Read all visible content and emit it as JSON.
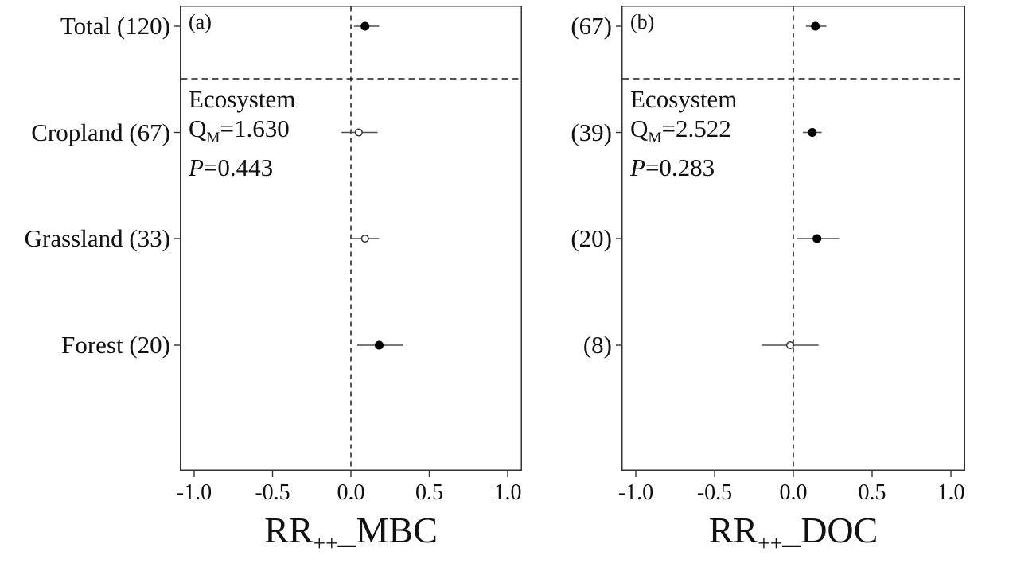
{
  "figure": {
    "background": "#ffffff",
    "axis_color": "#333333",
    "dashed_line_color": "#1a1a1a",
    "errorbar_color": "#4d4d4d",
    "marker_fill_color": "#000000",
    "marker_open_fill": "#ffffff"
  },
  "chart_data": [
    {
      "type": "scatter",
      "subtype": "forest-plot",
      "panel_label": "(a)",
      "xlabel_full": "RR++_MBC",
      "xlabel_base": "RR",
      "xlabel_sub": "++",
      "xlabel_rest": "_MBC",
      "xlim": [
        -1.0,
        1.0
      ],
      "xticks": [
        -1.0,
        -0.5,
        0.0,
        0.5,
        1.0
      ],
      "xtick_labels": [
        "-1.0",
        "-0.5",
        "0.0",
        "0.5",
        "1.0"
      ],
      "reference_line_x": 0.0,
      "grid": false,
      "rows": [
        {
          "label": "Total (120)",
          "n": 120,
          "mean": 0.09,
          "ci_low": 0.02,
          "ci_high": 0.18,
          "marker": "filled"
        },
        {
          "label": "Cropland (67)",
          "n": 67,
          "mean": 0.05,
          "ci_low": -0.06,
          "ci_high": 0.17,
          "marker": "open"
        },
        {
          "label": "Grassland (33)",
          "n": 33,
          "mean": 0.09,
          "ci_low": 0.0,
          "ci_high": 0.18,
          "marker": "open"
        },
        {
          "label": "Forest (20)",
          "n": 20,
          "mean": 0.18,
          "ci_low": 0.04,
          "ci_high": 0.33,
          "marker": "filled"
        }
      ],
      "annotation": {
        "group_label": "Ecosystem",
        "q_base": "Q",
        "q_sub": "M",
        "q_rest": "=1.630",
        "p_base": "P",
        "p_rest": "=0.443"
      }
    },
    {
      "type": "scatter",
      "subtype": "forest-plot",
      "panel_label": "(b)",
      "xlabel_full": "RR++_DOC",
      "xlabel_base": "RR",
      "xlabel_sub": "++",
      "xlabel_rest": "_DOC",
      "xlim": [
        -1.0,
        1.0
      ],
      "xticks": [
        -1.0,
        -0.5,
        0.0,
        0.5,
        1.0
      ],
      "xtick_labels": [
        "-1.0",
        "-0.5",
        "0.0",
        "0.5",
        "1.0"
      ],
      "reference_line_x": 0.0,
      "grid": false,
      "rows": [
        {
          "label": "(67)",
          "n": 67,
          "mean": 0.14,
          "ci_low": 0.08,
          "ci_high": 0.21,
          "marker": "filled"
        },
        {
          "label": "(39)",
          "n": 39,
          "mean": 0.12,
          "ci_low": 0.06,
          "ci_high": 0.18,
          "marker": "filled"
        },
        {
          "label": "(20)",
          "n": 20,
          "mean": 0.15,
          "ci_low": 0.02,
          "ci_high": 0.29,
          "marker": "filled"
        },
        {
          "label": "(8)",
          "n": 8,
          "mean": -0.02,
          "ci_low": -0.2,
          "ci_high": 0.16,
          "marker": "open"
        }
      ],
      "annotation": {
        "group_label": "Ecosystem",
        "q_base": "Q",
        "q_sub": "M",
        "q_rest": "=2.522",
        "p_base": "P",
        "p_rest": "=0.283"
      }
    }
  ]
}
